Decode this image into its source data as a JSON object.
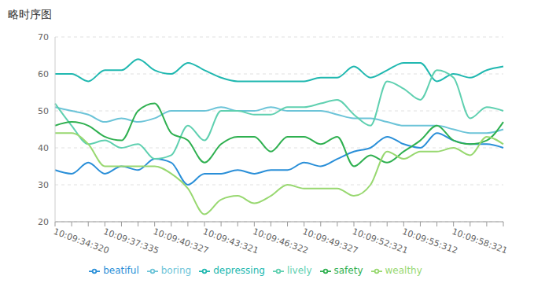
{
  "chart_data": {
    "type": "line",
    "title": "略时序图",
    "categories": [
      "10:09:34:320",
      null,
      null,
      "10:09:37:335",
      null,
      null,
      "10:09:40:327",
      null,
      null,
      "10:09:43:321",
      null,
      null,
      "10:09:46:322",
      null,
      null,
      "10:09:49:327",
      null,
      null,
      "10:09:52:321",
      null,
      null,
      "10:09:55:312",
      null,
      null,
      "10:09:58:321",
      null,
      null,
      null
    ],
    "series": [
      {
        "name": "beatiful",
        "color": "#2a8fd8",
        "values": [
          34,
          33,
          36,
          33,
          35,
          34,
          37,
          36,
          30,
          33,
          33,
          34,
          33,
          34,
          34,
          36,
          35,
          37,
          39,
          40,
          43,
          41,
          40,
          44,
          42,
          41,
          41,
          40
        ]
      },
      {
        "name": "boring",
        "color": "#6cc4d8",
        "values": [
          51,
          50,
          49,
          47,
          48,
          47,
          48,
          50,
          50,
          50,
          51,
          50,
          50,
          51,
          50,
          50,
          50,
          49,
          48,
          48,
          47,
          46,
          46,
          46,
          45,
          44,
          44,
          45
        ]
      },
      {
        "name": "depressing",
        "color": "#20b8b0",
        "values": [
          60,
          60,
          58,
          61,
          61,
          64,
          61,
          60,
          63,
          61,
          59,
          58,
          58,
          58,
          58,
          58,
          59,
          59,
          62,
          59,
          61,
          63,
          63,
          58,
          60,
          59,
          61,
          62
        ]
      },
      {
        "name": "lively",
        "color": "#5fd0b0",
        "values": [
          52,
          46,
          41,
          42,
          40,
          41,
          37,
          38,
          46,
          42,
          50,
          50,
          49,
          49,
          51,
          51,
          52,
          53,
          49,
          46,
          58,
          56,
          53,
          61,
          59,
          48,
          51,
          50
        ]
      },
      {
        "name": "safety",
        "color": "#2fb050",
        "values": [
          46,
          47,
          46,
          43,
          42,
          50,
          52,
          44,
          42,
          36,
          41,
          43,
          43,
          39,
          43,
          43,
          41,
          43,
          35,
          38,
          36,
          39,
          42,
          46,
          42,
          41,
          42,
          47
        ]
      },
      {
        "name": "wealthy",
        "color": "#98d870",
        "values": [
          44,
          44,
          41,
          35,
          35,
          35,
          35,
          33,
          29,
          22,
          26,
          27,
          25,
          27,
          30,
          29,
          29,
          29,
          27,
          30,
          39,
          37,
          39,
          39,
          40,
          38,
          43,
          41
        ]
      }
    ],
    "ylim": [
      20,
      70
    ],
    "yticks": [
      20,
      30,
      40,
      50,
      60,
      70
    ],
    "grid": true,
    "legend": "bottom"
  }
}
